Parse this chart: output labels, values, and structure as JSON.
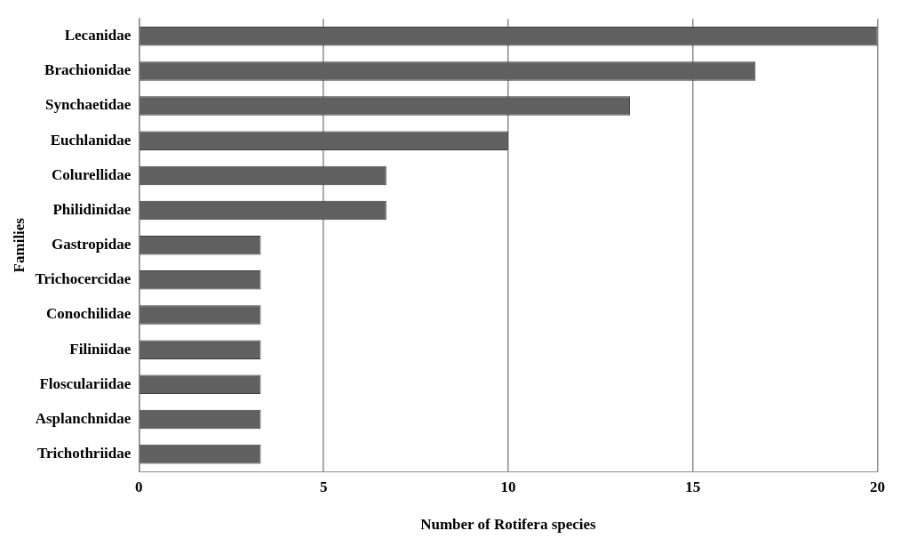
{
  "chart_data": {
    "type": "bar",
    "orientation": "horizontal",
    "xlabel": "Number of Rotifera species",
    "ylabel": "Families",
    "categories": [
      "Lecanidae",
      "Brachionidae",
      "Synchaetidae",
      "Euchlanidae",
      "Colurellidae",
      "Philidinidae",
      "Gastropidae",
      "Trichocercidae",
      "Conochilidae",
      "Filiniidae",
      "Flosculariidae",
      "Asplanchnidae",
      "Trichothriidae"
    ],
    "values": [
      20,
      16.7,
      13.3,
      10,
      6.7,
      6.7,
      3.3,
      3.3,
      3.3,
      3.3,
      3.3,
      3.3,
      3.3
    ],
    "color": "#606060",
    "xlim": [
      0,
      20
    ],
    "xticks": [
      0,
      5,
      10,
      15,
      20
    ],
    "grid": "x",
    "legend": false
  }
}
